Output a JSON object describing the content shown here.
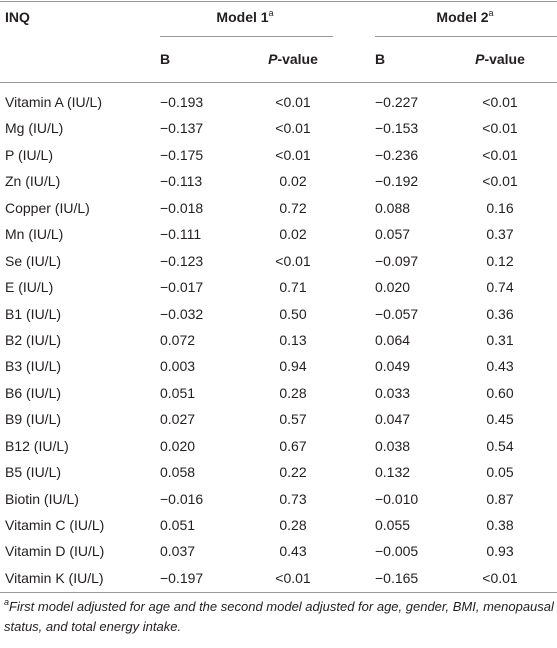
{
  "header": {
    "label": "INQ",
    "model1": {
      "title": "Model 1",
      "note": "a"
    },
    "model2": {
      "title": "Model 2",
      "note": "a"
    },
    "columns": [
      {
        "text": "B"
      },
      {
        "italic": "P",
        "rest": "-value"
      },
      {
        "text": "B"
      },
      {
        "italic": "P",
        "rest": "-value"
      }
    ]
  },
  "table": {
    "rows": [
      [
        "Vitamin A (IU/L)",
        "−0.193",
        "<0.01",
        "−0.227",
        "<0.01"
      ],
      [
        "Mg (IU/L)",
        "−0.137",
        "<0.01",
        "−0.153",
        "<0.01"
      ],
      [
        "P (IU/L)",
        "−0.175",
        "<0.01",
        "−0.236",
        "<0.01"
      ],
      [
        "Zn (IU/L)",
        "−0.113",
        "0.02",
        "−0.192",
        "<0.01"
      ],
      [
        "Copper (IU/L)",
        "−0.018",
        "0.72",
        "0.088",
        "0.16"
      ],
      [
        "Mn (IU/L)",
        "−0.111",
        "0.02",
        "0.057",
        "0.37"
      ],
      [
        "Se (IU/L)",
        "−0.123",
        "<0.01",
        "−0.097",
        "0.12"
      ],
      [
        "E (IU/L)",
        "−0.017",
        "0.71",
        "0.020",
        "0.74"
      ],
      [
        "B1 (IU/L)",
        "−0.032",
        "0.50",
        "−0.057",
        "0.36"
      ],
      [
        "B2 (IU/L)",
        "0.072",
        "0.13",
        "0.064",
        "0.31"
      ],
      [
        "B3 (IU/L)",
        "0.003",
        "0.94",
        "0.049",
        "0.43"
      ],
      [
        "B6 (IU/L)",
        "0.051",
        "0.28",
        "0.033",
        "0.60"
      ],
      [
        "B9 (IU/L)",
        "0.027",
        "0.57",
        "0.047",
        "0.45"
      ],
      [
        "B12 (IU/L)",
        "0.020",
        "0.67",
        "0.038",
        "0.54"
      ],
      [
        "B5 (IU/L)",
        "0.058",
        "0.22",
        "0.132",
        "0.05"
      ],
      [
        "Biotin (IU/L)",
        "−0.016",
        "0.73",
        "−0.010",
        "0.87"
      ],
      [
        "Vitamin C (IU/L)",
        "0.051",
        "0.28",
        "0.055",
        "0.38"
      ],
      [
        "Vitamin D (IU/L)",
        "0.037",
        "0.43",
        "−0.005",
        "0.93"
      ],
      [
        "Vitamin K (IU/L)",
        "−0.197",
        "<0.01",
        "−0.165",
        "<0.01"
      ]
    ]
  },
  "footnote": {
    "note": "a",
    "text": "First model adjusted for age and the second model adjusted for age, gender, BMI, menopausal status, and total energy intake."
  }
}
